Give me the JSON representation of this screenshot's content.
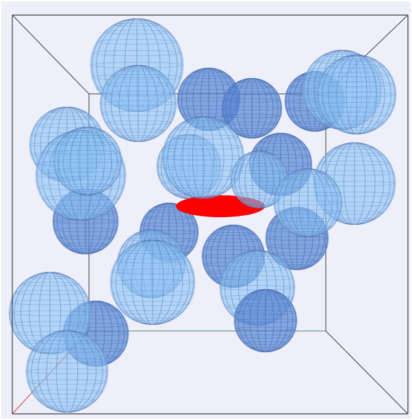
{
  "scene": {
    "background_color": "#eeeff9",
    "box_edge_color": "#3a3a4a",
    "box_bottom_edge_color": "#4a8a5a",
    "box_corner_axis_color": "#d04040",
    "ellipsoid_color": "#ff0000",
    "sphere_light_color": "#8cc4f5",
    "sphere_dark_color": "#5a88d6",
    "sphere_grid_color": "#4a6fb0",
    "sphere_count": 26,
    "ellipsoid_count": 1
  }
}
